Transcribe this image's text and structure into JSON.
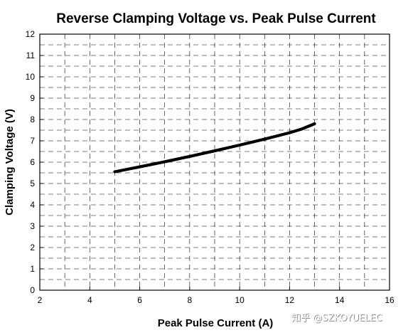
{
  "chart_data": {
    "type": "line",
    "title": "Reverse Clamping Voltage  vs. Peak Pulse Current",
    "xlabel": "Peak Pulse Current (A)",
    "ylabel": "Clamping Voltage (V)",
    "xlim": [
      2,
      16
    ],
    "ylim": [
      0,
      12
    ],
    "x_ticks": [
      "2",
      "4",
      "6",
      "8",
      "10",
      "12",
      "14",
      "16"
    ],
    "y_ticks": [
      "0",
      "1",
      "2",
      "3",
      "4",
      "5",
      "6",
      "7",
      "8",
      "9",
      "10",
      "11",
      "12"
    ],
    "grid": true,
    "series": [
      {
        "x": [
          5,
          6,
          7,
          8,
          9,
          10,
          11,
          12,
          12.5,
          13
        ],
        "y": [
          5.55,
          5.78,
          6.02,
          6.27,
          6.53,
          6.8,
          7.08,
          7.38,
          7.56,
          7.8
        ],
        "color": "#000000"
      }
    ]
  },
  "watermark": "知乎 @SZKOYUELEC"
}
